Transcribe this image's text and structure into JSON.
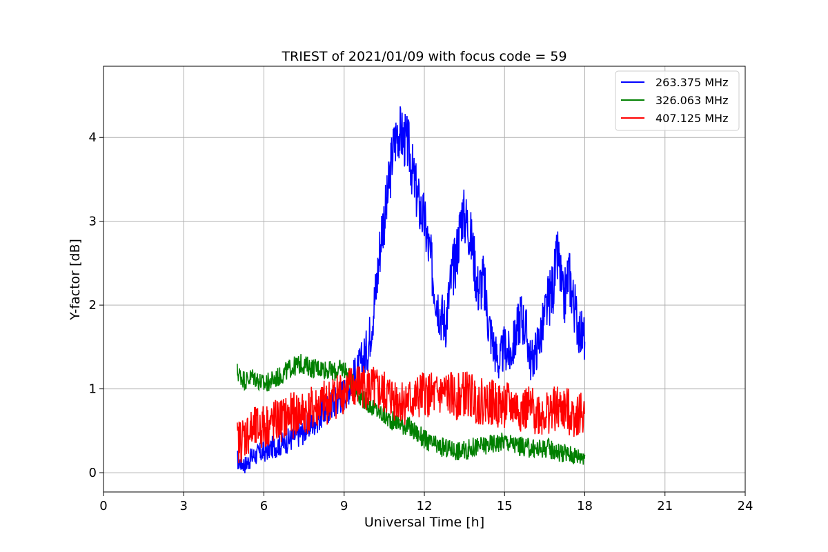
{
  "chart_data": {
    "type": "line",
    "title": "TRIEST of 2021/01/09 with focus code = 59",
    "xlabel": "Universal Time [h]",
    "ylabel": "Y-factor [dB]",
    "xlim": [
      0,
      24
    ],
    "ylim": [
      -0.23,
      4.85
    ],
    "xticks": [
      0,
      3,
      6,
      9,
      12,
      15,
      18,
      21,
      24
    ],
    "yticks": [
      0,
      1,
      2,
      3,
      4
    ],
    "grid": true,
    "legend_position": "top-right",
    "series": [
      {
        "name": "263.375 MHz",
        "color": "#0000ff",
        "x": [
          5.0,
          5.3,
          5.6,
          6.0,
          6.3,
          6.7,
          7.0,
          7.5,
          8.0,
          8.5,
          9.0,
          9.5,
          9.9,
          10.2,
          10.4,
          10.6,
          10.8,
          11.0,
          11.2,
          11.4,
          11.6,
          11.8,
          12.0,
          12.2,
          12.4,
          12.6,
          12.8,
          13.0,
          13.2,
          13.4,
          13.6,
          13.8,
          14.0,
          14.2,
          14.4,
          14.6,
          14.8,
          15.0,
          15.2,
          15.4,
          15.6,
          15.8,
          16.0,
          16.2,
          16.4,
          16.6,
          16.8,
          17.0,
          17.2,
          17.4,
          17.6,
          17.8,
          18.0
        ],
        "y": [
          0.15,
          0.1,
          0.2,
          0.25,
          0.3,
          0.35,
          0.4,
          0.5,
          0.65,
          0.8,
          0.95,
          1.2,
          1.5,
          2.2,
          2.9,
          3.2,
          3.8,
          4.1,
          4.0,
          3.9,
          3.5,
          3.2,
          3.0,
          2.6,
          2.2,
          1.9,
          1.8,
          2.3,
          2.6,
          3.1,
          3.0,
          2.7,
          2.2,
          2.3,
          1.8,
          1.5,
          1.3,
          1.5,
          1.4,
          1.6,
          1.9,
          1.7,
          1.3,
          1.5,
          1.7,
          2.0,
          2.2,
          2.6,
          2.0,
          2.4,
          2.0,
          1.7,
          1.6
        ]
      },
      {
        "name": "326.063 MHz",
        "color": "#008000",
        "x": [
          5.0,
          5.3,
          5.6,
          6.0,
          6.3,
          6.6,
          7.0,
          7.4,
          7.8,
          8.2,
          8.6,
          9.0,
          9.4,
          9.8,
          10.2,
          10.6,
          11.0,
          11.4,
          11.8,
          12.2,
          12.6,
          13.0,
          13.4,
          13.8,
          14.2,
          14.6,
          15.0,
          15.4,
          15.8,
          16.2,
          16.6,
          17.0,
          17.4,
          17.8,
          18.0
        ],
        "y": [
          1.2,
          1.1,
          1.15,
          1.05,
          1.1,
          1.15,
          1.25,
          1.3,
          1.25,
          1.25,
          1.2,
          1.25,
          1.0,
          0.85,
          0.75,
          0.65,
          0.6,
          0.55,
          0.45,
          0.35,
          0.3,
          0.28,
          0.25,
          0.3,
          0.32,
          0.35,
          0.38,
          0.33,
          0.3,
          0.28,
          0.3,
          0.25,
          0.22,
          0.2,
          0.22
        ]
      },
      {
        "name": "407.125 MHz",
        "color": "#ff0000",
        "x": [
          5.0,
          5.3,
          5.6,
          6.0,
          6.4,
          6.8,
          7.2,
          7.6,
          8.0,
          8.4,
          8.8,
          9.2,
          9.6,
          10.0,
          10.4,
          10.8,
          11.2,
          11.6,
          12.0,
          12.4,
          12.8,
          13.2,
          13.6,
          14.0,
          14.4,
          14.8,
          15.2,
          15.6,
          16.0,
          16.4,
          16.8,
          17.2,
          17.6,
          18.0
        ],
        "y": [
          0.35,
          0.45,
          0.5,
          0.55,
          0.6,
          0.65,
          0.7,
          0.72,
          0.78,
          0.85,
          0.95,
          1.0,
          1.05,
          1.0,
          0.95,
          0.9,
          0.85,
          0.85,
          0.95,
          0.9,
          0.95,
          0.9,
          0.95,
          0.85,
          0.85,
          0.8,
          0.8,
          0.75,
          0.75,
          0.7,
          0.75,
          0.75,
          0.7,
          0.7
        ]
      }
    ]
  }
}
